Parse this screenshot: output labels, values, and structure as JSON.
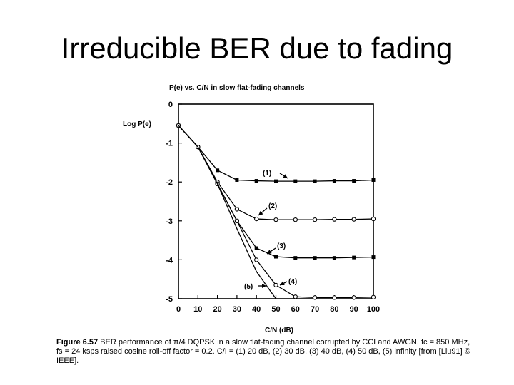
{
  "slide": {
    "title": "Irreducible BER due to fading"
  },
  "chart_data": {
    "type": "line",
    "title": "P(e)  vs.  C/N  in  slow flat-fading  channels",
    "xlabel": "C/N  (dB)",
    "ylabel": "Log  P(e)",
    "xlim": [
      0,
      100
    ],
    "ylim": [
      -5,
      0
    ],
    "x_ticks": [
      0,
      10,
      20,
      30,
      40,
      50,
      60,
      70,
      80,
      90,
      100
    ],
    "y_ticks": [
      0,
      -1,
      -2,
      -3,
      -4,
      -5
    ],
    "grid": false,
    "series": [
      {
        "name": "(1)",
        "marker": "filled-square",
        "x": [
          0,
          10,
          20,
          30,
          40,
          50,
          60,
          70,
          80,
          90,
          100
        ],
        "y": [
          -0.55,
          -1.1,
          -1.7,
          -1.95,
          -1.97,
          -1.98,
          -1.98,
          -1.98,
          -1.97,
          -1.97,
          -1.95
        ]
      },
      {
        "name": "(2)",
        "marker": "open-circle",
        "x": [
          0,
          10,
          20,
          30,
          40,
          50,
          60,
          70,
          80,
          90,
          100
        ],
        "y": [
          -0.55,
          -1.1,
          -2.0,
          -2.7,
          -2.95,
          -2.97,
          -2.97,
          -2.97,
          -2.96,
          -2.96,
          -2.95
        ]
      },
      {
        "name": "(3)",
        "marker": "filled-square",
        "x": [
          0,
          10,
          20,
          30,
          40,
          50,
          60,
          70,
          80,
          90,
          100
        ],
        "y": [
          -0.55,
          -1.1,
          -2.05,
          -3.0,
          -3.7,
          -3.92,
          -3.95,
          -3.95,
          -3.95,
          -3.94,
          -3.93
        ]
      },
      {
        "name": "(4)",
        "marker": "open-circle",
        "x": [
          0,
          10,
          20,
          30,
          40,
          50,
          60,
          70,
          80,
          90,
          100
        ],
        "y": [
          -0.55,
          -1.1,
          -2.05,
          -3.0,
          -4.0,
          -4.65,
          -4.95,
          -4.97,
          -4.97,
          -4.97,
          -4.96
        ]
      },
      {
        "name": "(5)",
        "marker": "none",
        "x": [
          0,
          10,
          20,
          30,
          40,
          50
        ],
        "y": [
          -0.55,
          -1.1,
          -2.05,
          -3.2,
          -4.3,
          -5.0
        ]
      }
    ],
    "caption": {
      "figure_label": "Figure 6.57",
      "text": "BER performance of π/4 DQPSK in a slow flat-fading channel corrupted by CCI and AWGN. fc = 850 MHz, fs = 24 ksps raised cosine roll-off factor = 0.2. C/I = (1) 20 dB, (2) 30 dB, (3) 40 dB, (4) 50 dB, (5) infinity [from [Liu91] © IEEE]."
    }
  }
}
